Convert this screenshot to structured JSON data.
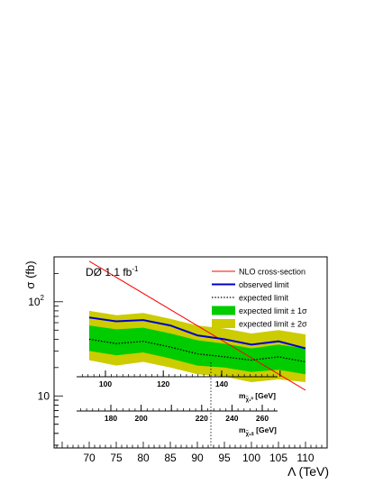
{
  "chart_data": {
    "type": "line",
    "annotation": "DØ 1.1 fb",
    "annotation_sup": "-1",
    "xlabel": "Λ (TeV)",
    "ylabel": "σ (fb)",
    "xlim": [
      63.5,
      114
    ],
    "ylim": [
      2.8,
      300
    ],
    "yscale": "log",
    "x": [
      70,
      75,
      80,
      85,
      90,
      95,
      100,
      105,
      110
    ],
    "x_ticks": [
      70,
      75,
      80,
      85,
      90,
      95,
      100,
      105,
      110
    ],
    "y_ticks": [
      {
        "value": 10,
        "label": "10"
      },
      {
        "value": 100,
        "label": "10",
        "sup": "2"
      }
    ],
    "series": [
      {
        "name": "NLO cross-section",
        "kind": "line",
        "color": "#ff0000",
        "x": [
          70,
          110
        ],
        "values": [
          270,
          11.5
        ]
      },
      {
        "name": "observed limit",
        "kind": "line",
        "color": "#0000cc",
        "values": [
          68,
          62,
          64,
          56,
          44,
          40,
          35,
          38,
          32
        ]
      },
      {
        "name": "expected limit",
        "kind": "dotted",
        "color": "#000000",
        "values": [
          40,
          36,
          38,
          33,
          28,
          26,
          24,
          26,
          23
        ]
      },
      {
        "name": "expected limit ± 1σ",
        "kind": "band",
        "color": "#00cc00",
        "low": [
          30,
          27,
          29,
          25,
          21,
          20,
          18,
          19,
          17
        ],
        "high": [
          56,
          51,
          53,
          46,
          39,
          36,
          32,
          35,
          32
        ]
      },
      {
        "name": "expected limit ± 2σ",
        "kind": "band",
        "color": "#cccc00",
        "low": [
          24,
          21,
          23,
          20,
          17,
          16,
          14,
          15,
          14
        ],
        "high": [
          80,
          72,
          76,
          66,
          56,
          52,
          46,
          50,
          45
        ]
      }
    ],
    "reference_line_x": 92.5,
    "secondary_axes": [
      {
        "label": "m",
        "sub": "χ̃₁⁰",
        "unit": " [GeV]",
        "x_at_ticks": [
          73,
          83.7,
          94.5,
          105.3
        ],
        "labels": [
          "100",
          "120",
          "140",
          ""
        ],
        "major_every": 10,
        "minor_count": 40
      },
      {
        "label": "m",
        "sub": "χ̃₁±",
        "unit": " [GeV]",
        "x_at_ticks": [
          74,
          79.6,
          85.2,
          90.8,
          96.4,
          102
        ],
        "labels": [
          "180",
          "200",
          "",
          "220",
          "240",
          "260"
        ],
        "major_every": 5,
        "minor_count": 45
      }
    ]
  }
}
